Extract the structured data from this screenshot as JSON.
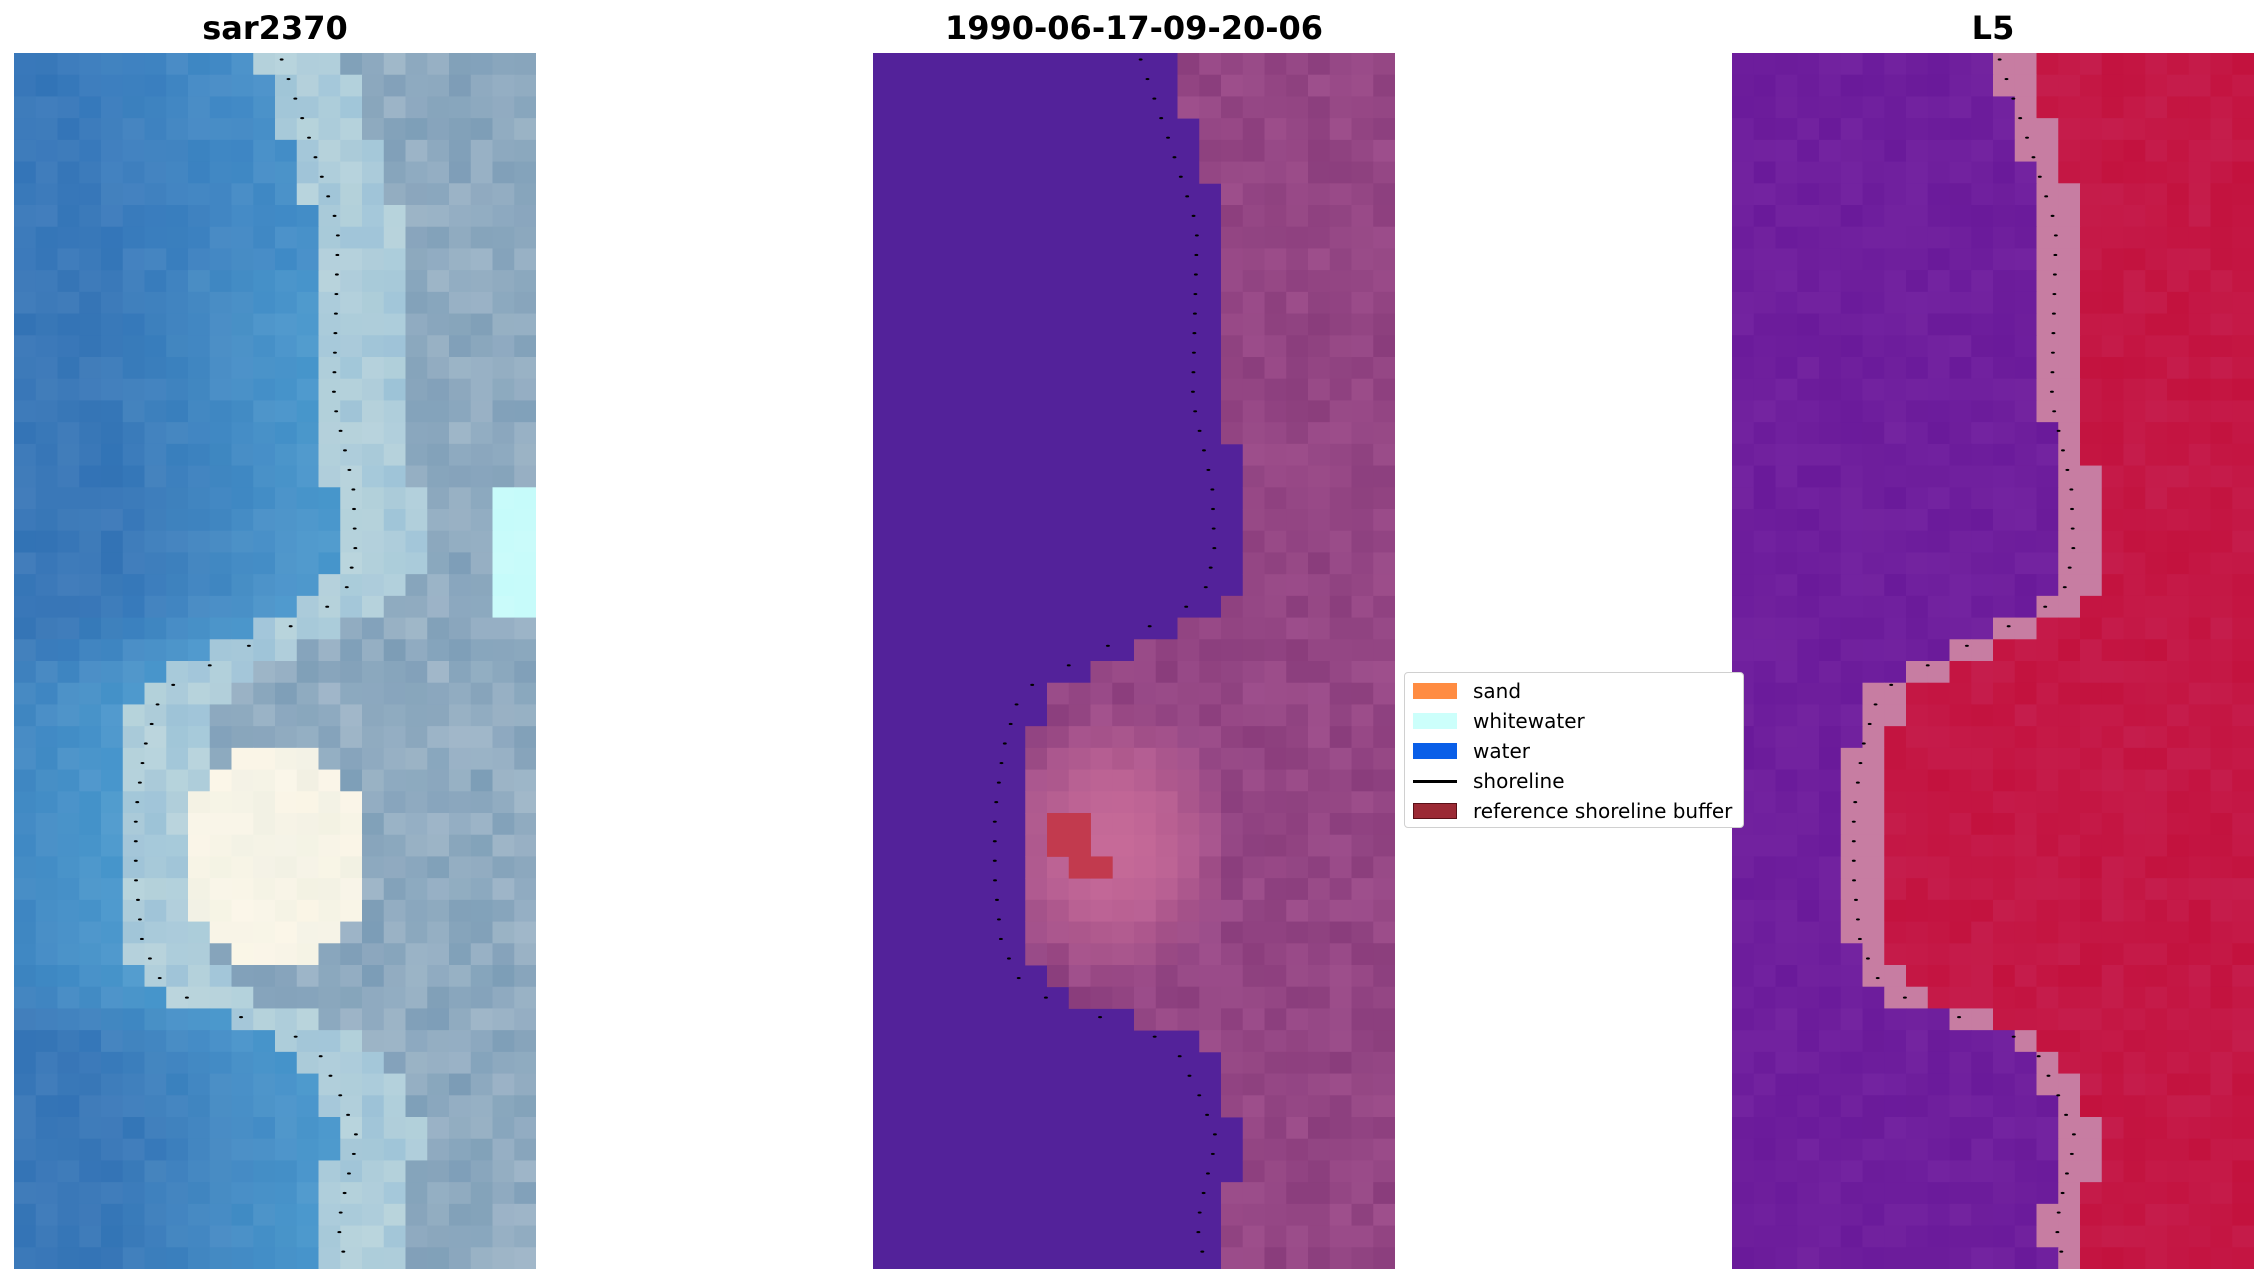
{
  "panels": [
    {
      "title": "sar2370"
    },
    {
      "title": "1990-06-17-09-20-06"
    },
    {
      "title": "L5"
    }
  ],
  "legend": {
    "items": [
      {
        "label": "sand",
        "color": "#ff8c42",
        "kind": "patch"
      },
      {
        "label": "whitewater",
        "color": "#ccfffb",
        "kind": "patch"
      },
      {
        "label": "water",
        "color": "#0a5fe8",
        "kind": "patch"
      },
      {
        "label": "shoreline",
        "color": "#000000",
        "kind": "line"
      },
      {
        "label": "reference shoreline buffer",
        "color": "#9b2a35",
        "kind": "patch"
      }
    ]
  },
  "colors": {
    "water_rgb": "#3a78b8",
    "water_rgb_light": "#5ab0dc",
    "whitewater_rgb": "#fbf6e8",
    "sand_rgb": "#7f9fb8",
    "class_water": "#53229a",
    "class_land": "#8a3d7c",
    "class_land_light": "#c66a98",
    "class_buffer": "#c23a4e",
    "index_low": "#6a1a9a",
    "index_high": "#c3123e",
    "index_edge": "#c77da2",
    "shoreline": "#000000"
  }
}
